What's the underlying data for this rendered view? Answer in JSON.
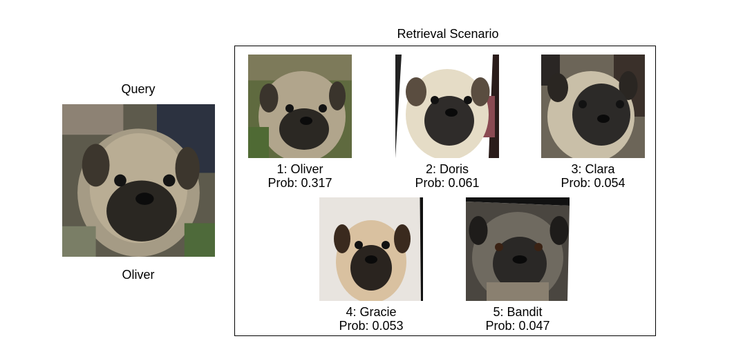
{
  "query": {
    "title": "Query",
    "name": "Oliver",
    "image_icon": "pug-photo"
  },
  "scenario": {
    "title": "Retrieval Scenario",
    "results": [
      {
        "rank_label": "1: Oliver",
        "prob_label": "Prob: 0.317",
        "prob": 0.317,
        "image_icon": "pug-photo"
      },
      {
        "rank_label": "2: Doris",
        "prob_label": "Prob: 0.061",
        "prob": 0.061,
        "image_icon": "pug-photo"
      },
      {
        "rank_label": "3: Clara",
        "prob_label": "Prob: 0.054",
        "prob": 0.054,
        "image_icon": "pug-photo"
      },
      {
        "rank_label": "4: Gracie",
        "prob_label": "Prob: 0.053",
        "prob": 0.053,
        "image_icon": "pug-photo"
      },
      {
        "rank_label": "5: Bandit",
        "prob_label": "Prob: 0.047",
        "prob": 0.047,
        "image_icon": "pug-photo"
      }
    ]
  }
}
